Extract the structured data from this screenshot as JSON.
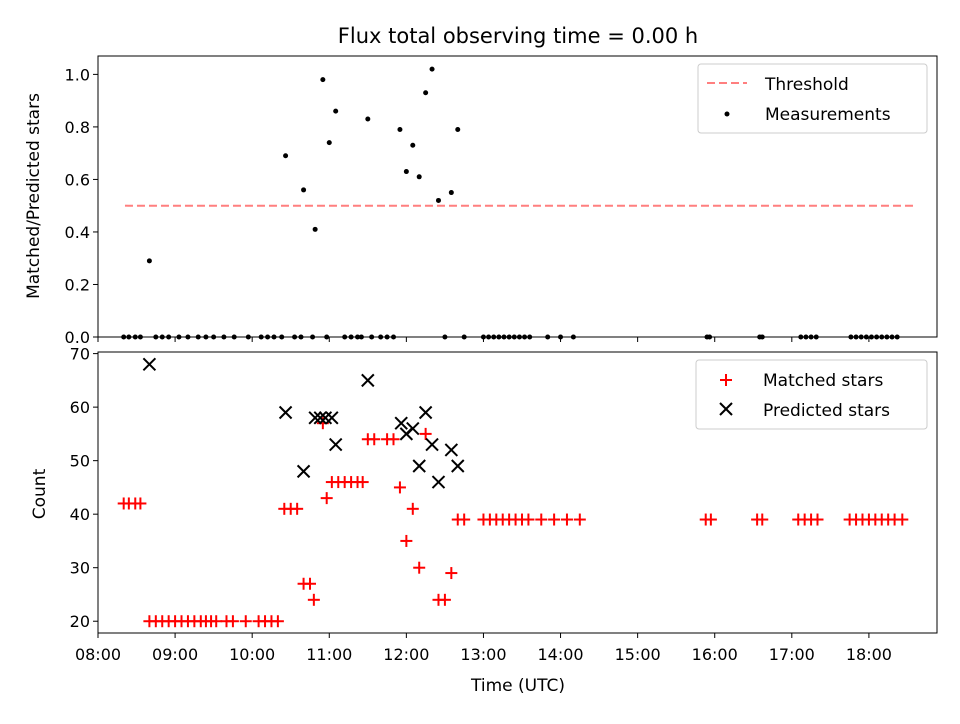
{
  "chart_data": [
    {
      "type": "scatter",
      "title": "Flux total observing time = 0.00 h",
      "xlabel": "",
      "ylabel": "Matched/Predicted stars",
      "xlim": [
        "08:00",
        "18:53"
      ],
      "ylim": [
        0,
        1.07
      ],
      "yticks": [
        "0.0",
        "0.2",
        "0.4",
        "0.6",
        "0.8",
        "1.0"
      ],
      "legend_position": "top-right",
      "threshold": {
        "name": "Threshold",
        "value": 0.5,
        "x_start": "08:21",
        "x_end": "18:35",
        "color": "#ff7f7f",
        "style": "dashed"
      },
      "measurements": {
        "name": "Measurements",
        "color": "#000000",
        "points": [
          [
            "08:20",
            0
          ],
          [
            "08:24",
            0
          ],
          [
            "08:29",
            0
          ],
          [
            "08:33",
            0
          ],
          [
            "08:40",
            0.29
          ],
          [
            "08:45",
            0
          ],
          [
            "08:50",
            0
          ],
          [
            "08:55",
            0
          ],
          [
            "09:03",
            0
          ],
          [
            "09:10",
            0
          ],
          [
            "09:18",
            0
          ],
          [
            "09:24",
            0
          ],
          [
            "09:30",
            0
          ],
          [
            "09:38",
            0
          ],
          [
            "09:46",
            0
          ],
          [
            "09:57",
            0
          ],
          [
            "10:07",
            0
          ],
          [
            "10:12",
            0
          ],
          [
            "10:17",
            0
          ],
          [
            "10:23",
            0
          ],
          [
            "10:26",
            0.69
          ],
          [
            "10:33",
            0
          ],
          [
            "10:38",
            0
          ],
          [
            "10:40",
            0.56
          ],
          [
            "10:47",
            0
          ],
          [
            "10:49",
            0.41
          ],
          [
            "10:55",
            0.98
          ],
          [
            "10:58",
            0
          ],
          [
            "11:00",
            0.74
          ],
          [
            "11:05",
            0.86
          ],
          [
            "11:12",
            0
          ],
          [
            "11:17",
            0
          ],
          [
            "11:22",
            0
          ],
          [
            "11:25",
            0
          ],
          [
            "11:30",
            0.83
          ],
          [
            "11:33",
            0
          ],
          [
            "11:40",
            0
          ],
          [
            "11:45",
            0
          ],
          [
            "11:50",
            0
          ],
          [
            "11:55",
            0.79
          ],
          [
            "12:00",
            0.63
          ],
          [
            "12:05",
            0.73
          ],
          [
            "12:10",
            0.61
          ],
          [
            "12:15",
            0.93
          ],
          [
            "12:20",
            1.02
          ],
          [
            "12:25",
            0.52
          ],
          [
            "12:30",
            0
          ],
          [
            "12:35",
            0.55
          ],
          [
            "12:40",
            0.79
          ],
          [
            "12:45",
            0
          ],
          [
            "13:00",
            0
          ],
          [
            "13:04",
            0
          ],
          [
            "13:08",
            0
          ],
          [
            "13:12",
            0
          ],
          [
            "13:16",
            0
          ],
          [
            "13:20",
            0
          ],
          [
            "13:24",
            0
          ],
          [
            "13:28",
            0
          ],
          [
            "13:32",
            0
          ],
          [
            "13:36",
            0
          ],
          [
            "13:50",
            0
          ],
          [
            "14:00",
            0
          ],
          [
            "14:10",
            0
          ],
          [
            "15:54",
            0
          ],
          [
            "15:56",
            0
          ],
          [
            "16:35",
            0
          ],
          [
            "16:37",
            0
          ],
          [
            "17:07",
            0
          ],
          [
            "17:11",
            0
          ],
          [
            "17:15",
            0
          ],
          [
            "17:19",
            0
          ],
          [
            "17:46",
            0
          ],
          [
            "17:50",
            0
          ],
          [
            "17:54",
            0
          ],
          [
            "17:58",
            0
          ],
          [
            "18:02",
            0
          ],
          [
            "18:06",
            0
          ],
          [
            "18:10",
            0
          ],
          [
            "18:14",
            0
          ],
          [
            "18:18",
            0
          ],
          [
            "18:22",
            0
          ]
        ]
      }
    },
    {
      "type": "scatter",
      "title": "",
      "xlabel": "Time (UTC)",
      "ylabel": "Count",
      "xlim": [
        "08:00",
        "18:53"
      ],
      "ylim": [
        17.8,
        70.3
      ],
      "yticks": [
        "20",
        "30",
        "40",
        "50",
        "60",
        "70"
      ],
      "xticks": [
        "08:00",
        "09:00",
        "10:00",
        "11:00",
        "12:00",
        "13:00",
        "14:00",
        "15:00",
        "16:00",
        "17:00",
        "18:00"
      ],
      "legend_position": "top-right",
      "matched": {
        "name": "Matched stars",
        "color": "#ff0000",
        "marker": "plus",
        "points": [
          [
            "08:20",
            42
          ],
          [
            "08:24",
            42
          ],
          [
            "08:29",
            42
          ],
          [
            "08:33",
            42
          ],
          [
            "08:40",
            20
          ],
          [
            "08:45",
            20
          ],
          [
            "08:50",
            20
          ],
          [
            "08:55",
            20
          ],
          [
            "09:00",
            20
          ],
          [
            "09:05",
            20
          ],
          [
            "09:10",
            20
          ],
          [
            "09:15",
            20
          ],
          [
            "09:20",
            20
          ],
          [
            "09:24",
            20
          ],
          [
            "09:28",
            20
          ],
          [
            "09:32",
            20
          ],
          [
            "09:40",
            20
          ],
          [
            "09:45",
            20
          ],
          [
            "09:55",
            20
          ],
          [
            "10:05",
            20
          ],
          [
            "10:10",
            20
          ],
          [
            "10:15",
            20
          ],
          [
            "10:20",
            20
          ],
          [
            "10:25",
            41
          ],
          [
            "10:30",
            41
          ],
          [
            "10:35",
            41
          ],
          [
            "10:40",
            27
          ],
          [
            "10:45",
            27
          ],
          [
            "10:48",
            24
          ],
          [
            "10:55",
            57
          ],
          [
            "10:58",
            43
          ],
          [
            "11:02",
            46
          ],
          [
            "11:07",
            46
          ],
          [
            "11:12",
            46
          ],
          [
            "11:17",
            46
          ],
          [
            "11:22",
            46
          ],
          [
            "11:26",
            46
          ],
          [
            "11:30",
            54
          ],
          [
            "11:35",
            54
          ],
          [
            "11:45",
            54
          ],
          [
            "11:50",
            54
          ],
          [
            "11:55",
            45
          ],
          [
            "12:00",
            35
          ],
          [
            "12:05",
            41
          ],
          [
            "12:10",
            30
          ],
          [
            "12:15",
            55
          ],
          [
            "12:25",
            24
          ],
          [
            "12:30",
            24
          ],
          [
            "12:35",
            29
          ],
          [
            "12:40",
            39
          ],
          [
            "12:45",
            39
          ],
          [
            "13:00",
            39
          ],
          [
            "13:05",
            39
          ],
          [
            "13:10",
            39
          ],
          [
            "13:15",
            39
          ],
          [
            "13:20",
            39
          ],
          [
            "13:25",
            39
          ],
          [
            "13:30",
            39
          ],
          [
            "13:35",
            39
          ],
          [
            "13:45",
            39
          ],
          [
            "13:55",
            39
          ],
          [
            "14:05",
            39
          ],
          [
            "14:15",
            39
          ],
          [
            "15:53",
            39
          ],
          [
            "15:57",
            39
          ],
          [
            "16:33",
            39
          ],
          [
            "16:37",
            39
          ],
          [
            "17:05",
            39
          ],
          [
            "17:10",
            39
          ],
          [
            "17:15",
            39
          ],
          [
            "17:20",
            39
          ],
          [
            "17:45",
            39
          ],
          [
            "17:50",
            39
          ],
          [
            "17:55",
            39
          ],
          [
            "18:00",
            39
          ],
          [
            "18:05",
            39
          ],
          [
            "18:10",
            39
          ],
          [
            "18:15",
            39
          ],
          [
            "18:20",
            39
          ],
          [
            "18:26",
            39
          ]
        ]
      },
      "predicted": {
        "name": "Predicted stars",
        "color": "#000000",
        "marker": "x",
        "points": [
          [
            "08:40",
            68
          ],
          [
            "10:26",
            59
          ],
          [
            "10:40",
            48
          ],
          [
            "10:49",
            58
          ],
          [
            "10:53",
            58
          ],
          [
            "10:57",
            58
          ],
          [
            "11:02",
            58
          ],
          [
            "11:05",
            53
          ],
          [
            "11:30",
            65
          ],
          [
            "11:56",
            57
          ],
          [
            "12:00",
            55
          ],
          [
            "12:05",
            56
          ],
          [
            "12:10",
            49
          ],
          [
            "12:15",
            59
          ],
          [
            "12:20",
            53
          ],
          [
            "12:25",
            46
          ],
          [
            "12:35",
            52
          ],
          [
            "12:40",
            49
          ]
        ]
      }
    }
  ]
}
